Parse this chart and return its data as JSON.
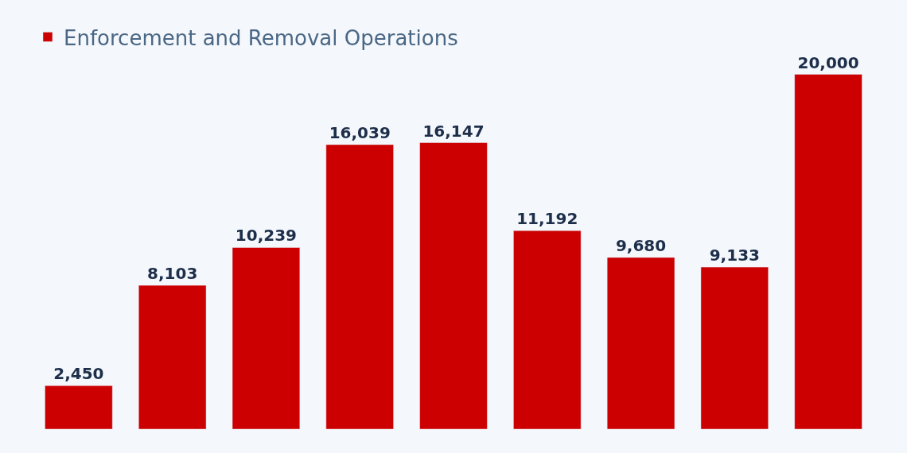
{
  "chart_data": {
    "type": "bar",
    "categories": [
      null,
      null,
      null,
      null,
      null,
      null,
      null,
      null,
      null
    ],
    "series": [
      {
        "name": "Enforcement and Removal Operations",
        "color": "#cc0000",
        "values": [
          2450,
          8103,
          10239,
          16039,
          16147,
          11192,
          9680,
          9133,
          20000
        ],
        "value_labels": [
          "2,450",
          "8,103",
          "10,239",
          "16,039",
          "16,147",
          "11,192",
          "9,680",
          "9,133",
          "20,000"
        ]
      }
    ],
    "legend": "top left"
  }
}
